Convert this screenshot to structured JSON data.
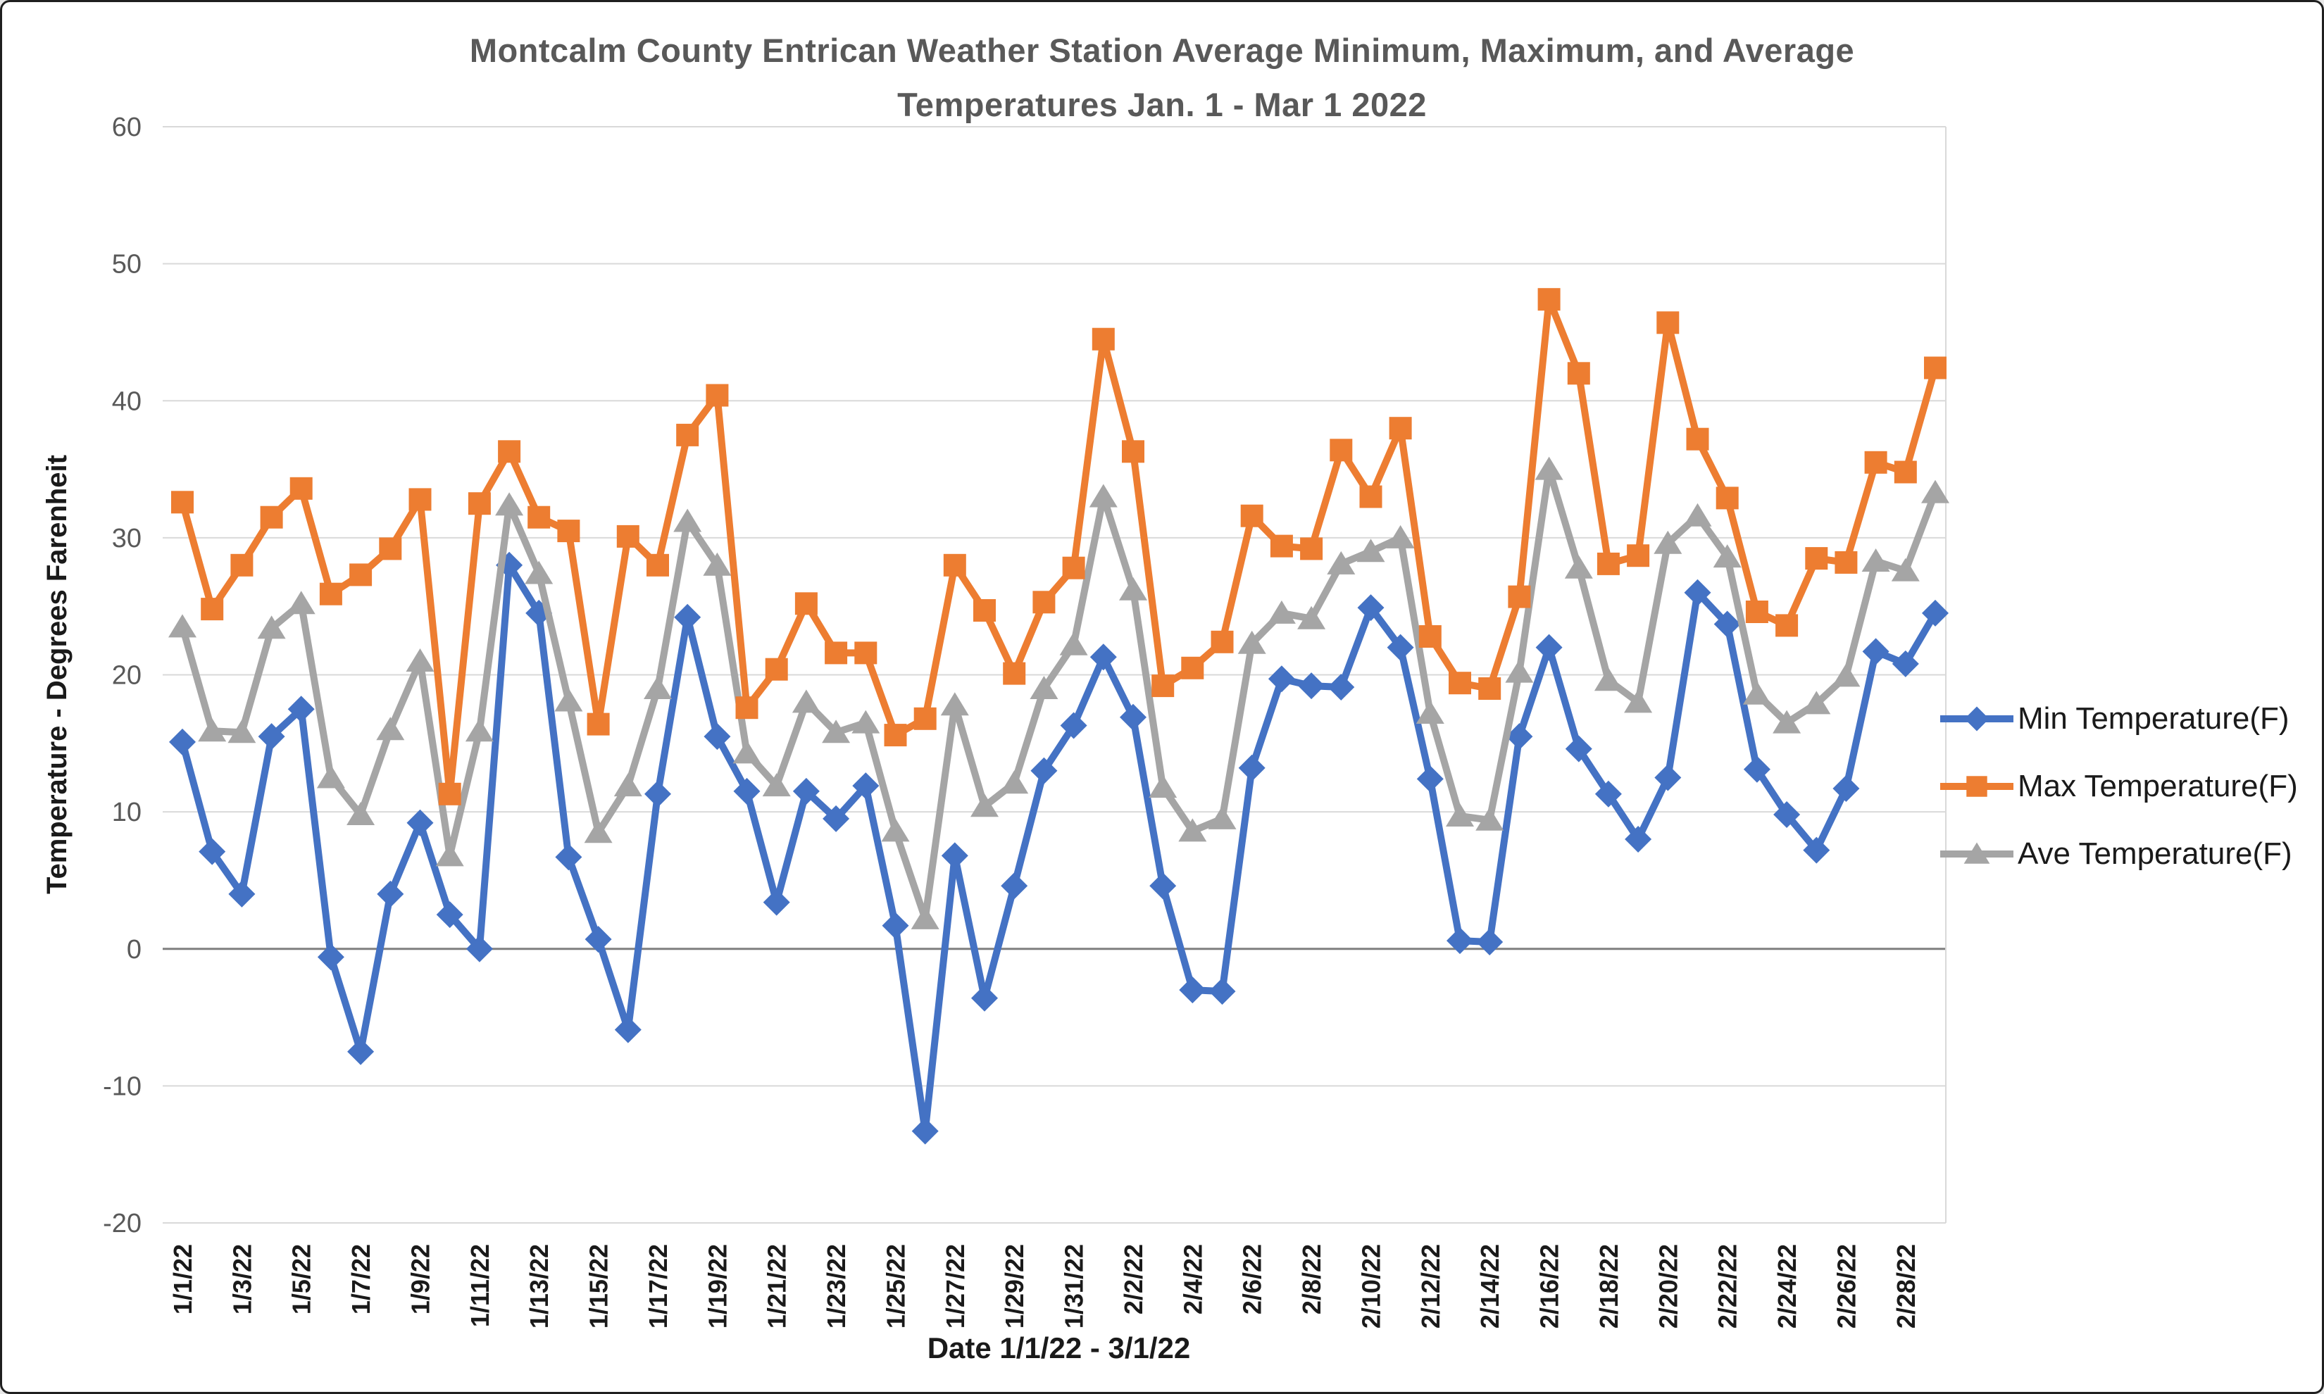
{
  "window": {
    "background": "#ffffff",
    "border_color": "#1f1f1f"
  },
  "title": {
    "line1": "Montcalm County Entrican Weather Station Average Minimum, Maximum, and Average",
    "line2": "Temperatures Jan. 1 - Mar 1 2022",
    "color": "#595959"
  },
  "y_axis": {
    "title": "Temperature - Degrees Farenheit",
    "tick_labels": [
      60,
      50,
      40,
      30,
      20,
      10,
      0,
      -10,
      -20
    ],
    "label_color": "#595959"
  },
  "x_axis": {
    "title": "Date 1/1/22 - 3/1/22",
    "tick_labels": [
      "1/1/22",
      "1/3/22",
      "1/5/22",
      "1/7/22",
      "1/9/22",
      "1/11/22",
      "1/13/22",
      "1/15/22",
      "1/17/22",
      "1/19/22",
      "1/21/22",
      "1/23/22",
      "1/25/22",
      "1/27/22",
      "1/29/22",
      "1/31/22",
      "2/2/22",
      "2/4/22",
      "2/6/22",
      "2/8/22",
      "2/10/22",
      "2/12/22",
      "2/14/22",
      "2/16/22",
      "2/18/22",
      "2/20/22",
      "2/22/22",
      "2/24/22",
      "2/26/22",
      "2/28/22"
    ],
    "tick_step": 2,
    "label_color": "#1a1a1a"
  },
  "legend": {
    "position": "right",
    "items": [
      {
        "label": "Min Temperature(F)",
        "marker": "diamond",
        "color": "#4472C4"
      },
      {
        "label": "Max Temperature(F)",
        "marker": "square",
        "color": "#ED7D31"
      },
      {
        "label": "Ave Temperature(F)",
        "marker": "triangle",
        "color": "#A5A5A5"
      }
    ]
  },
  "chart_data": {
    "type": "line",
    "title": "Montcalm County Entrican Weather Station Average Minimum, Maximum, and Average Temperatures Jan. 1 - Mar 1 2022",
    "xlabel": "Date 1/1/22 - 3/1/22",
    "ylabel": "Temperature - Degrees Farenheit",
    "ylim": [
      -20,
      60
    ],
    "y_ticks": [
      60,
      50,
      40,
      30,
      20,
      10,
      0,
      -10,
      -20
    ],
    "grid": true,
    "gridline_color": "#D9D9D9",
    "zero_line_color": "#7F7F7F",
    "legend_position": "right",
    "x": [
      "1/1/22",
      "1/2/22",
      "1/3/22",
      "1/4/22",
      "1/5/22",
      "1/6/22",
      "1/7/22",
      "1/8/22",
      "1/9/22",
      "1/10/22",
      "1/11/22",
      "1/12/22",
      "1/13/22",
      "1/14/22",
      "1/15/22",
      "1/16/22",
      "1/17/22",
      "1/18/22",
      "1/19/22",
      "1/20/22",
      "1/21/22",
      "1/22/22",
      "1/23/22",
      "1/24/22",
      "1/25/22",
      "1/26/22",
      "1/27/22",
      "1/28/22",
      "1/29/22",
      "1/30/22",
      "1/31/22",
      "2/1/22",
      "2/2/22",
      "2/3/22",
      "2/4/22",
      "2/5/22",
      "2/6/22",
      "2/7/22",
      "2/8/22",
      "2/9/22",
      "2/10/22",
      "2/11/22",
      "2/12/22",
      "2/13/22",
      "2/14/22",
      "2/15/22",
      "2/16/22",
      "2/17/22",
      "2/18/22",
      "2/19/22",
      "2/20/22",
      "2/21/22",
      "2/22/22",
      "2/23/22",
      "2/24/22",
      "2/25/22",
      "2/26/22",
      "2/27/22",
      "2/28/22",
      "3/1/22"
    ],
    "series": [
      {
        "name": "Min Temperature(F)",
        "color": "#4472C4",
        "marker": "diamond",
        "values": [
          15.1,
          7.1,
          4.0,
          15.5,
          17.5,
          -0.6,
          -7.5,
          4.0,
          9.2,
          2.5,
          0.0,
          28.0,
          24.5,
          6.7,
          0.7,
          -5.9,
          11.3,
          24.2,
          15.5,
          11.5,
          3.4,
          11.5,
          9.5,
          11.9,
          1.7,
          -13.3,
          6.8,
          -3.6,
          4.6,
          13.0,
          16.3,
          21.3,
          16.9,
          4.6,
          -3.0,
          -3.1,
          13.2,
          19.7,
          19.2,
          19.1,
          24.9,
          22.0,
          12.4,
          0.6,
          0.5,
          15.5,
          22.0,
          14.6,
          11.3,
          8.0,
          12.5,
          26.0,
          23.7,
          13.1,
          9.8,
          7.2,
          11.7,
          21.7,
          20.8,
          24.5
        ]
      },
      {
        "name": "Max Temperature(F)",
        "color": "#ED7D31",
        "marker": "square",
        "values": [
          32.6,
          24.8,
          28.0,
          31.5,
          33.6,
          25.9,
          27.3,
          29.2,
          32.8,
          11.3,
          32.5,
          36.3,
          31.5,
          30.5,
          16.4,
          30.1,
          28.0,
          37.5,
          40.4,
          17.6,
          20.4,
          25.2,
          21.6,
          21.6,
          15.6,
          16.8,
          28.0,
          24.7,
          20.1,
          25.3,
          27.8,
          44.5,
          36.3,
          19.2,
          20.5,
          22.4,
          31.6,
          29.4,
          29.2,
          36.4,
          33.0,
          38.0,
          22.8,
          19.4,
          19.0,
          25.7,
          47.4,
          42.0,
          28.1,
          28.7,
          45.7,
          37.2,
          32.9,
          24.6,
          23.6,
          28.5,
          28.2,
          35.5,
          34.8,
          42.4
        ]
      },
      {
        "name": "Ave Temperature(F)",
        "color": "#A5A5A5",
        "marker": "triangle",
        "values": [
          23.5,
          15.9,
          15.8,
          23.4,
          25.2,
          12.5,
          9.8,
          16.0,
          21.0,
          6.8,
          15.9,
          32.4,
          27.4,
          18.1,
          8.5,
          11.9,
          19.0,
          31.2,
          28.0,
          14.3,
          11.9,
          18.0,
          15.8,
          16.5,
          8.6,
          2.2,
          17.8,
          10.4,
          12.1,
          19.0,
          22.2,
          33.0,
          26.2,
          11.8,
          8.6,
          9.5,
          22.3,
          24.5,
          24.1,
          28.1,
          29.0,
          30.0,
          17.2,
          9.7,
          9.4,
          20.2,
          35.0,
          27.8,
          19.6,
          18.0,
          29.6,
          31.6,
          28.6,
          18.6,
          16.5,
          17.9,
          19.9,
          28.3,
          27.6,
          33.3
        ]
      }
    ]
  }
}
